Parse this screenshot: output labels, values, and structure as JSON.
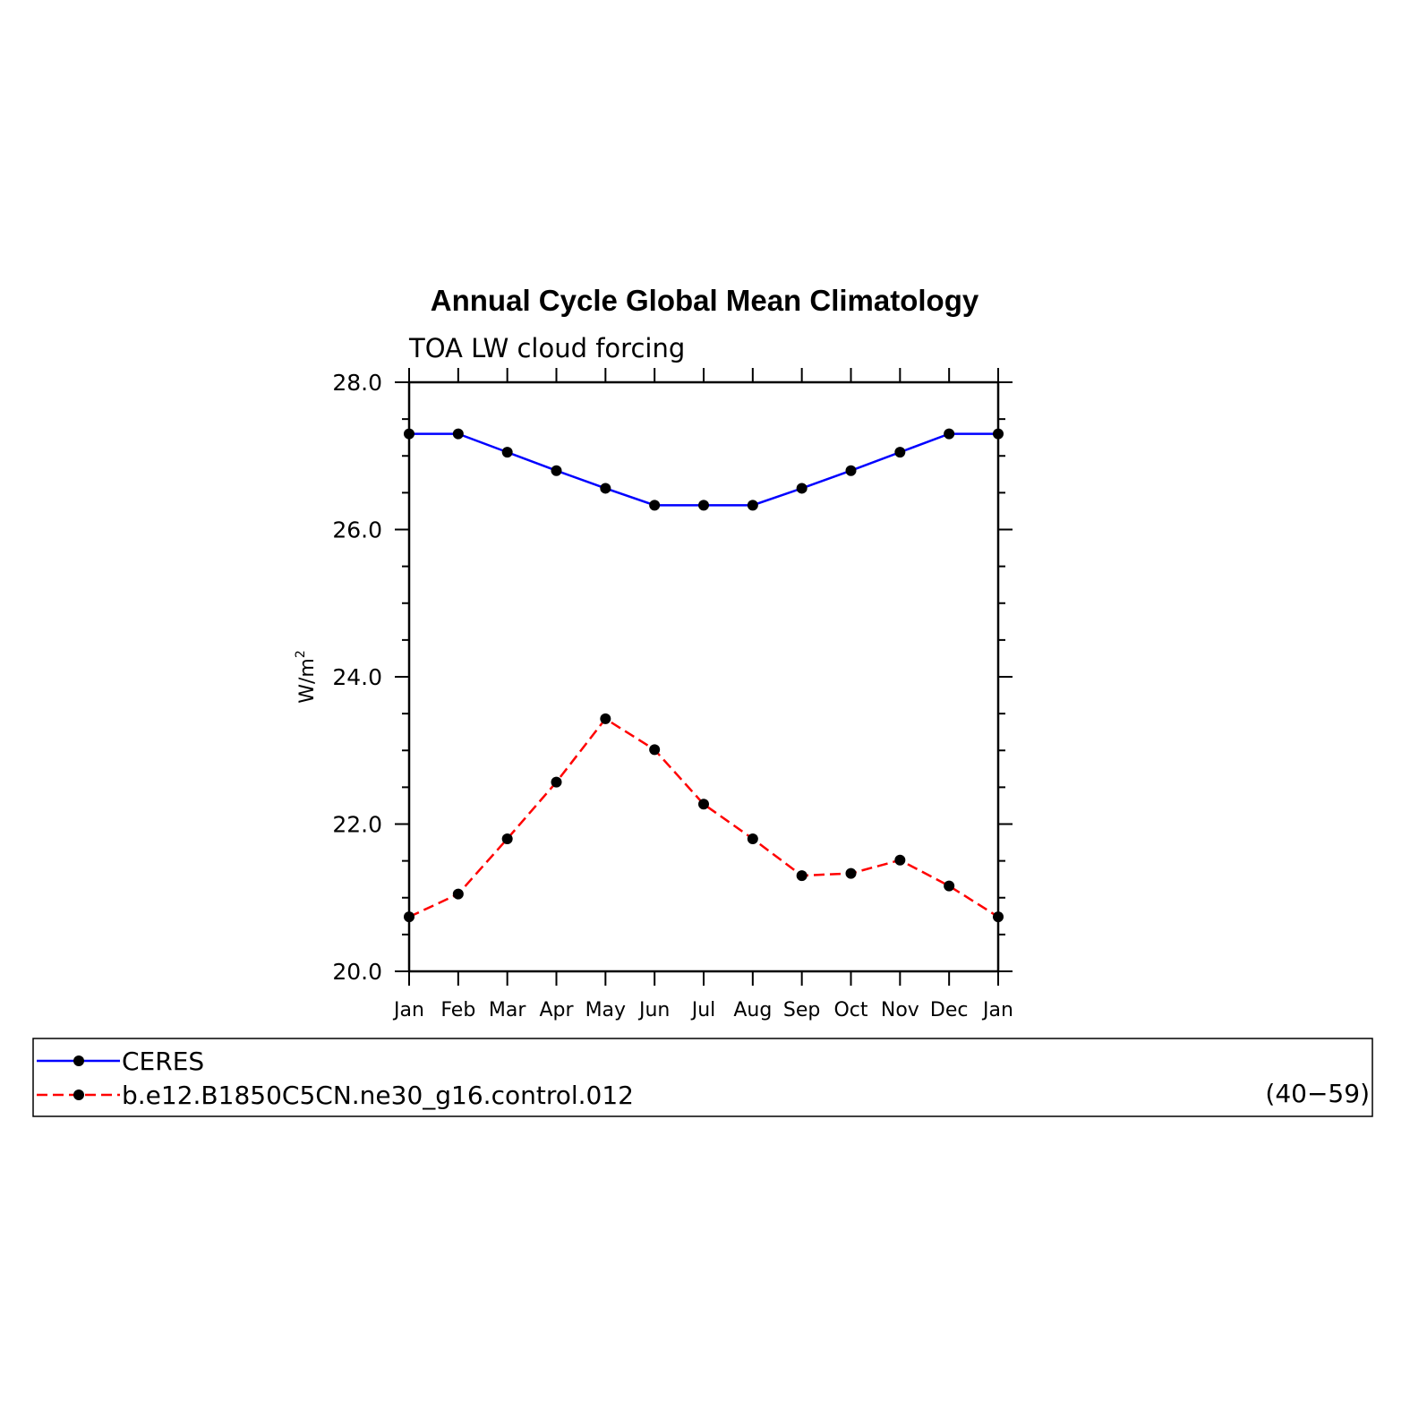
{
  "chart_data": {
    "type": "line",
    "title": "Annual Cycle Global Mean Climatology",
    "subtitle": "TOA LW cloud forcing",
    "ylabel_base": "W/m",
    "ylabel_sup": "2",
    "ylim": [
      20.0,
      28.0
    ],
    "yticks": [
      "20.0",
      "22.0",
      "24.0",
      "26.0",
      "28.0"
    ],
    "categories": [
      "Jan",
      "Feb",
      "Mar",
      "Apr",
      "May",
      "Jun",
      "Jul",
      "Aug",
      "Sep",
      "Oct",
      "Nov",
      "Dec",
      "Jan"
    ],
    "grid": false,
    "legend_position": "bottom",
    "series": [
      {
        "name": "CERES",
        "color": "#0000ff",
        "dash": "solid",
        "values": [
          27.3,
          27.3,
          27.05,
          26.8,
          26.56,
          26.33,
          26.33,
          26.33,
          26.56,
          26.8,
          27.05,
          27.3,
          27.3
        ]
      },
      {
        "name": "b.e12.B1850C5CN.ne30_g16.control.012",
        "color": "#ff0000",
        "dash": "dashed",
        "values": [
          20.74,
          21.05,
          21.8,
          22.57,
          23.43,
          23.01,
          22.27,
          21.8,
          21.3,
          21.33,
          21.51,
          21.16,
          20.74
        ]
      }
    ],
    "legend_note": "(40−59)"
  }
}
